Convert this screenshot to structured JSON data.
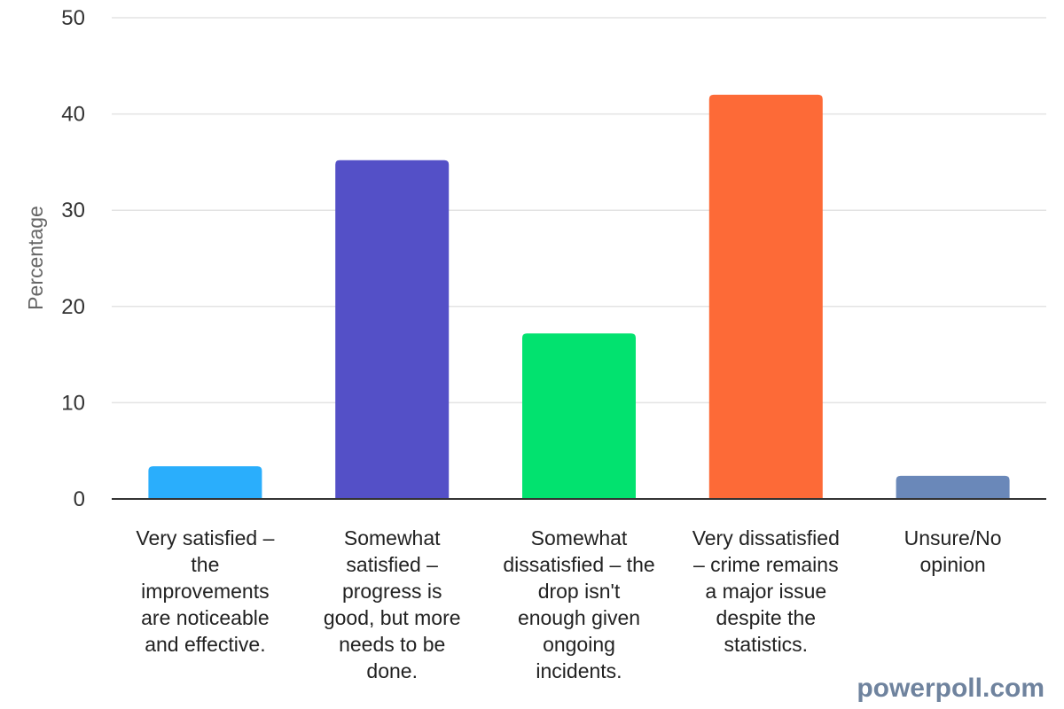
{
  "chart_data": {
    "type": "bar",
    "categories": [
      "Very satisfied – the improvements are noticeable and effective.",
      "Somewhat satisfied – progress is good, but more needs to be done.",
      "Somewhat dissatisfied – the drop isn't enough given ongoing incidents.",
      "Very dissatisfied – crime remains a major issue despite the statistics.",
      "Unsure/No opinion"
    ],
    "category_lines": [
      [
        "Very satisfied –",
        "the",
        "improvements",
        "are noticeable",
        "and effective."
      ],
      [
        "Somewhat",
        "satisfied –",
        "progress is",
        "good, but more",
        "needs to be",
        "done."
      ],
      [
        "Somewhat",
        "dissatisfied – the",
        "drop isn't",
        "enough given",
        "ongoing",
        "incidents."
      ],
      [
        "Very dissatisfied",
        "– crime remains",
        "a major issue",
        "despite the",
        "statistics."
      ],
      [
        "Unsure/No",
        "opinion"
      ]
    ],
    "values": [
      3.4,
      35.2,
      17.2,
      42.0,
      2.4
    ],
    "colors": [
      "#2aaefc",
      "#5450c7",
      "#02e26f",
      "#fd6a37",
      "#6a88b9"
    ],
    "title": "",
    "xlabel": "",
    "ylabel": "Percentage",
    "ylim": [
      0,
      50
    ],
    "yticks": [
      0,
      10,
      20,
      30,
      40,
      50
    ],
    "grid": true,
    "legend": "none"
  },
  "watermark": "powerpoll.com"
}
